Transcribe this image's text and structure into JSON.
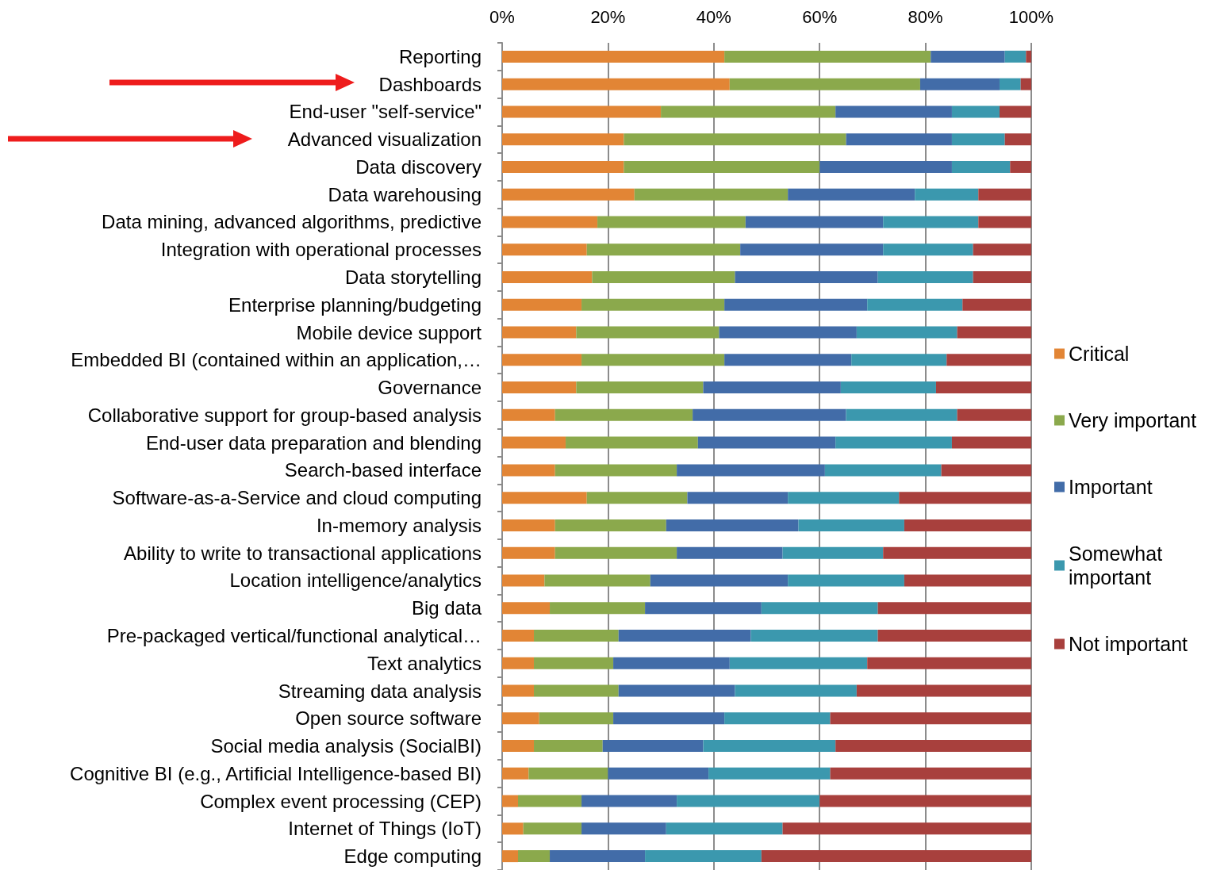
{
  "chart_data": {
    "type": "bar",
    "orientation": "horizontal",
    "stacked": true,
    "categories": [
      "Reporting",
      "Dashboards",
      "End-user \"self-service\"",
      "Advanced visualization",
      "Data discovery",
      "Data warehousing",
      "Data mining, advanced algorithms, predictive",
      "Integration with operational processes",
      "Data storytelling",
      "Enterprise planning/budgeting",
      "Mobile device support",
      "Embedded BI (contained within an application,…",
      "Governance",
      "Collaborative support for group-based analysis",
      "End-user data preparation and blending",
      "Search-based interface",
      "Software-as-a-Service and cloud computing",
      "In-memory analysis",
      "Ability to write to transactional applications",
      "Location intelligence/analytics",
      "Big data",
      "Pre-packaged vertical/functional analytical…",
      "Text analytics",
      "Streaming data analysis",
      "Open source software",
      "Social media analysis (SocialBI)",
      "Cognitive BI (e.g., Artificial Intelligence-based BI)",
      "Complex event processing (CEP)",
      "Internet of Things (IoT)",
      "Edge computing"
    ],
    "series": [
      {
        "name": "Critical",
        "color": "#e28535",
        "values": [
          42,
          43,
          30,
          23,
          23,
          25,
          18,
          16,
          17,
          15,
          14,
          15,
          14,
          10,
          12,
          10,
          16,
          10,
          10,
          8,
          9,
          6,
          6,
          6,
          7,
          6,
          5,
          3,
          4,
          3
        ]
      },
      {
        "name": "Very important",
        "color": "#8ba94c",
        "values": [
          39,
          36,
          33,
          42,
          37,
          29,
          28,
          29,
          27,
          27,
          27,
          27,
          24,
          26,
          25,
          23,
          19,
          21,
          23,
          20,
          18,
          16,
          15,
          16,
          14,
          13,
          15,
          12,
          11,
          6
        ]
      },
      {
        "name": "Important",
        "color": "#426ca8",
        "values": [
          14,
          15,
          22,
          20,
          25,
          24,
          26,
          27,
          27,
          27,
          26,
          24,
          26,
          29,
          26,
          28,
          19,
          25,
          20,
          26,
          22,
          25,
          22,
          22,
          21,
          19,
          19,
          18,
          16,
          18
        ]
      },
      {
        "name": "Somewhat important",
        "color": "#3b98ae",
        "values": [
          4,
          4,
          9,
          10,
          11,
          12,
          18,
          17,
          18,
          18,
          19,
          18,
          18,
          21,
          22,
          22,
          21,
          20,
          19,
          22,
          22,
          24,
          26,
          23,
          20,
          25,
          23,
          27,
          22,
          22
        ]
      },
      {
        "name": "Not important",
        "color": "#a8403d",
        "values": [
          1,
          2,
          6,
          5,
          4,
          10,
          10,
          11,
          11,
          13,
          14,
          16,
          18,
          14,
          15,
          17,
          25,
          24,
          28,
          24,
          29,
          29,
          31,
          33,
          38,
          37,
          38,
          40,
          47,
          51
        ]
      }
    ],
    "xlim": [
      0,
      100
    ],
    "xticks": [
      {
        "value": 0,
        "label": "0%"
      },
      {
        "value": 20,
        "label": "20%"
      },
      {
        "value": 40,
        "label": "40%"
      },
      {
        "value": 60,
        "label": "60%"
      },
      {
        "value": 80,
        "label": "80%"
      },
      {
        "value": 100,
        "label": "100%"
      }
    ],
    "grid": "x",
    "legend": "right"
  }
}
